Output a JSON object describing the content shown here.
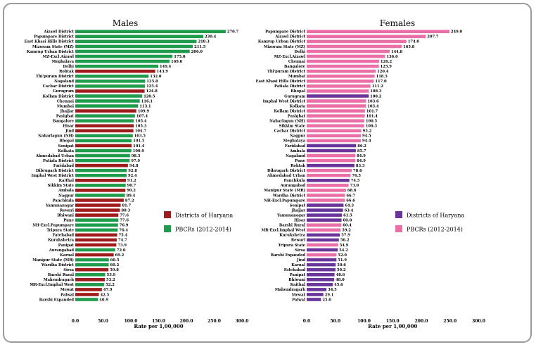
{
  "colors": {
    "male_pbcr": "#1e9b4b",
    "male_haryana": "#a01c1c",
    "female_pbcr": "#ea6fa6",
    "female_haryana": "#6a359a"
  },
  "chart_data": [
    {
      "type": "bar",
      "orientation": "horizontal",
      "title": "Males",
      "xlabel": "Rate per 1,00,000",
      "xlim": [
        0,
        300
      ],
      "xticks": [
        "0.0",
        "50.0",
        "100.0",
        "150.0",
        "200.0",
        "250.0",
        "300.0"
      ],
      "legend": [
        {
          "label": "Districts of Haryana",
          "group": "haryana"
        },
        {
          "label": "PBCRs (2012-2014)",
          "group": "pbcr"
        }
      ],
      "categories": [
        "Aizawl District",
        "Papumpare District",
        "East Khasi Hills District",
        "Mizoram State (MZ)",
        "Kamrup Urban District",
        "MZ-Excl.Aizawl",
        "Meghalaya",
        "Delhi",
        "Rohtak",
        "Thi'puram District",
        "Nagaland",
        "Cachar District",
        "Gurugram",
        "Kollam District",
        "Chennai",
        "Mumbai",
        "Jhajjar",
        "Pasighat",
        "Bangalore",
        "Hisar",
        "Jind",
        "Naharlagun (NH)",
        "Bhopal",
        "Sonipat",
        "Kolkata",
        "Ahmedabad Urban",
        "Patiala District",
        "Faridabad",
        "Dibrugarh District",
        "Imphal West District",
        "Kaithal",
        "Sikkim State",
        "Ambala",
        "Nagpur",
        "Panchkula",
        "Yamunanagar",
        "Rewari",
        "Bhiwani",
        "Pune",
        "NH-Excl.Papumpare",
        "Tripura State",
        "Fatehabad",
        "Kurukshetra",
        "Panipat",
        "Aurangabad",
        "Karnal",
        "Manipur State (MR)",
        "Wardha District",
        "Sirsa",
        "Barshi Rural",
        "Mahendragarh",
        "MR-Excl.Imphal West",
        "Mewat",
        "Palwal",
        "Barshi Expanded"
      ],
      "values": [
        270.7,
        230.4,
        218.3,
        211.5,
        206.0,
        175.0,
        169.6,
        149.4,
        143.9,
        132.0,
        125.8,
        125.4,
        124.8,
        120.5,
        116.1,
        113.1,
        109.9,
        107.4,
        105.4,
        105.3,
        104.7,
        103.5,
        101.5,
        101.4,
        100.9,
        98.5,
        97.9,
        94.8,
        92.8,
        92.4,
        91.2,
        90.7,
        90.2,
        89.4,
        87.2,
        81.7,
        80.3,
        77.6,
        77.6,
        76.9,
        76.4,
        75.4,
        74.7,
        73.9,
        72.0,
        69.2,
        60.5,
        60.2,
        59.8,
        53.9,
        53.2,
        52.2,
        47.9,
        42.5,
        40.9
      ],
      "values_text": [
        "270.7",
        "230.4",
        "218.3",
        "211.5",
        "206.0",
        "175.0",
        "169.6",
        "149.4",
        "143.9",
        "132.0",
        "125.8",
        "125.4",
        "124.8",
        "120.5",
        "116.1",
        "113.1",
        "109.9",
        "107.4",
        "105.4",
        "105.3",
        "104.7",
        "103.5",
        "101.5",
        "101.4",
        "100.9",
        "98.5",
        "97.9",
        "94.8",
        "92.8",
        "92.4",
        "91.2",
        "90.7",
        "90.2",
        "89.4",
        "87.2",
        "81.7",
        "80.3",
        "77.6",
        "77.6",
        "76.9",
        "76.4",
        "75.4",
        "74.7",
        "73.9",
        "72.0",
        "69.2",
        "60.5",
        "60.2",
        "59.8",
        "53.9",
        "53.2",
        "52.2",
        "47.9",
        "42.5",
        "40.9"
      ],
      "groups": [
        "pbcr",
        "pbcr",
        "pbcr",
        "pbcr",
        "pbcr",
        "pbcr",
        "pbcr",
        "pbcr",
        "haryana",
        "pbcr",
        "pbcr",
        "pbcr",
        "haryana",
        "pbcr",
        "pbcr",
        "pbcr",
        "haryana",
        "pbcr",
        "pbcr",
        "haryana",
        "haryana",
        "pbcr",
        "pbcr",
        "haryana",
        "pbcr",
        "pbcr",
        "pbcr",
        "haryana",
        "pbcr",
        "pbcr",
        "haryana",
        "pbcr",
        "haryana",
        "pbcr",
        "haryana",
        "haryana",
        "haryana",
        "haryana",
        "pbcr",
        "pbcr",
        "pbcr",
        "haryana",
        "haryana",
        "haryana",
        "pbcr",
        "haryana",
        "pbcr",
        "pbcr",
        "haryana",
        "pbcr",
        "haryana",
        "pbcr",
        "haryana",
        "haryana",
        "pbcr"
      ]
    },
    {
      "type": "bar",
      "orientation": "horizontal",
      "title": "Females",
      "xlabel": "Rate per 1,00,000",
      "xlim": [
        0,
        300
      ],
      "xticks": [
        "0.0",
        "50.0",
        "100.0",
        "150.0",
        "200.0",
        "250.0",
        "300.0"
      ],
      "legend": [
        {
          "label": "Districts of Haryana",
          "group": "haryana"
        },
        {
          "label": "PBCRs (2012-2014)",
          "group": "pbcr"
        }
      ],
      "categories": [
        "Papumpare District",
        "Aizawl District",
        "Kamrup Urban District",
        "Mizoram State (MZ)",
        "Delhi",
        "MZ-Excl.Aizawl",
        "Chennai",
        "Bangalore",
        "Thi'puram District",
        "Mumbai",
        "East Khasi Hills District",
        "Patiala District",
        "Bhopal",
        "Gurugram",
        "Imphal West District",
        "Kolkata",
        "Kollam District",
        "Pasighat",
        "Naharlagun (NH)",
        "Sikkim State",
        "Cachar District",
        "Nagpur",
        "Meghalaya",
        "Faridabad",
        "Ambala",
        "Nagaland",
        "Pune",
        "Rohtak",
        "Dibrugarh District",
        "Ahmedabad Urban",
        "Panchkula",
        "Aurangabad",
        "Manipur State (MR)",
        "Wardha District",
        "NH-Excl.Papumpare",
        "Sonipat",
        "Jhajjar",
        "Yamunanagar",
        "Hisar",
        "Barshi Rural",
        "MR-Excl.Imphal West",
        "Kurukshetra",
        "Rewari",
        "Tripura State",
        "Sirsa",
        "Barshi Expanded",
        "Jind",
        "Karnal",
        "Fatehabad",
        "Panipat",
        "Bhiwani",
        "Kaithal",
        "Mahendragarh",
        "Mewat",
        "Palwal"
      ],
      "values": [
        249.0,
        207.7,
        174.0,
        165.8,
        144.8,
        136.6,
        126.2,
        125.9,
        120.4,
        118.5,
        117.0,
        111.2,
        108.3,
        108.2,
        103.6,
        103.4,
        101.7,
        101.4,
        100.5,
        100.3,
        95.2,
        94.5,
        94.4,
        86.2,
        85.7,
        84.9,
        84.9,
        83.3,
        78.6,
        76.5,
        74.5,
        73.0,
        68.6,
        66.7,
        66.6,
        64.3,
        63.4,
        61.5,
        60.8,
        60.4,
        59.2,
        57.9,
        56.2,
        54.9,
        54.2,
        52.0,
        51.9,
        50.6,
        50.2,
        48.6,
        48.0,
        45.6,
        34.5,
        29.1,
        25.0
      ],
      "values_text": [
        "249.0",
        "207.7",
        "174.0",
        "165.8",
        "144.8",
        "136.6",
        "126.2",
        "125.9",
        "120.4",
        "118.5",
        "117.0",
        "111.2",
        "108.3",
        "108.2",
        "103.6",
        "103.4",
        "101.7",
        "101.4",
        "100.5",
        "100.3",
        "95.2",
        "94.5",
        "94.4",
        "86.2",
        "85.7",
        "84.9",
        "84.9",
        "83.3",
        "78.6",
        "76.5",
        "74.5",
        "73.0",
        "68.6",
        "66.7",
        "66.6",
        "64.3",
        "63.4",
        "61.5",
        "60.8",
        "60.4",
        "59.2",
        "57.9",
        "56.2",
        "54.9",
        "54.2",
        "52.0",
        "51.9",
        "50.6",
        "50.2",
        "48.6",
        "48.0",
        "45.6",
        "34.5",
        "29.1",
        "25.0"
      ],
      "groups": [
        "pbcr",
        "pbcr",
        "pbcr",
        "pbcr",
        "pbcr",
        "pbcr",
        "pbcr",
        "pbcr",
        "pbcr",
        "pbcr",
        "pbcr",
        "pbcr",
        "pbcr",
        "haryana",
        "pbcr",
        "pbcr",
        "pbcr",
        "pbcr",
        "pbcr",
        "pbcr",
        "pbcr",
        "pbcr",
        "pbcr",
        "haryana",
        "haryana",
        "pbcr",
        "pbcr",
        "haryana",
        "pbcr",
        "pbcr",
        "haryana",
        "pbcr",
        "pbcr",
        "pbcr",
        "pbcr",
        "haryana",
        "haryana",
        "haryana",
        "haryana",
        "pbcr",
        "pbcr",
        "haryana",
        "haryana",
        "pbcr",
        "haryana",
        "pbcr",
        "haryana",
        "haryana",
        "haryana",
        "haryana",
        "haryana",
        "haryana",
        "haryana",
        "haryana",
        "haryana"
      ]
    }
  ]
}
